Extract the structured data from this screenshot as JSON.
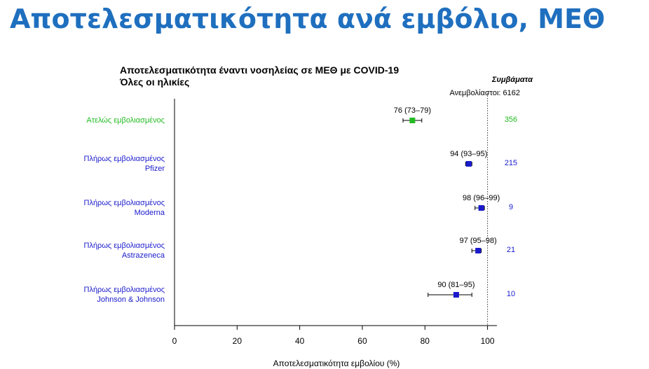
{
  "slide_title": "Αποτελεσματικότητα ανά εμβόλιο, ΜΕΘ",
  "colors": {
    "title": "#1f6fbf",
    "partial": "#22bb22",
    "full": "#1a1acc"
  },
  "chart_data": {
    "type": "forest",
    "title": "Αποτελεσματικότητα έναντι νοσηλείας σε ΜΕΘ με COVID-19",
    "subtitle": "Όλες οι ηλικίες",
    "xlabel": "Αποτελεσματικότητα εμβολίου (%)",
    "xlim": [
      0,
      103
    ],
    "xticks": [
      "0",
      "20",
      "40",
      "60",
      "80",
      "100"
    ],
    "reference_line": 100,
    "cases_header": "Συμβάματα",
    "unvaccinated_label": "Ανεμβολίαστοι:",
    "unvaccinated_cases": "6162",
    "rows": [
      {
        "label_lines": [
          "Ατελώς εμβολιασμένος"
        ],
        "estimate": 76,
        "lower": 73,
        "upper": 79,
        "ci_text": "76 (73–79)",
        "cases": "356",
        "color": "#22bb22"
      },
      {
        "label_lines": [
          "Πλήρως εμβολιασμένος",
          "Pfizer"
        ],
        "estimate": 94,
        "lower": 93,
        "upper": 95,
        "ci_text": "94 (93–95)",
        "cases": "215",
        "color": "#1a1acc"
      },
      {
        "label_lines": [
          "Πλήρως εμβολιασμένος",
          "Moderna"
        ],
        "estimate": 98,
        "lower": 96,
        "upper": 99,
        "ci_text": "98 (96–99)",
        "cases": "9",
        "color": "#1a1acc"
      },
      {
        "label_lines": [
          "Πλήρως εμβολιασμένος",
          "Astrazeneca"
        ],
        "estimate": 97,
        "lower": 95,
        "upper": 98,
        "ci_text": "97 (95–98)",
        "cases": "21",
        "color": "#1a1acc"
      },
      {
        "label_lines": [
          "Πλήρως εμβολιασμένος",
          "Johnson & Johnson"
        ],
        "estimate": 90,
        "lower": 81,
        "upper": 95,
        "ci_text": "90 (81–95)",
        "cases": "10",
        "color": "#1a1acc"
      }
    ]
  }
}
